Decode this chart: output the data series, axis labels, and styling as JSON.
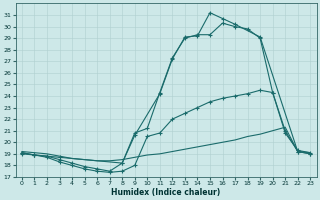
{
  "xlabel": "Humidex (Indice chaleur)",
  "xlim": [
    -0.5,
    23.5
  ],
  "ylim": [
    17,
    32
  ],
  "yticks": [
    17,
    18,
    19,
    20,
    21,
    22,
    23,
    24,
    25,
    26,
    27,
    28,
    29,
    30,
    31
  ],
  "xticks": [
    0,
    1,
    2,
    3,
    4,
    5,
    6,
    7,
    8,
    9,
    10,
    11,
    12,
    13,
    14,
    15,
    16,
    17,
    18,
    19,
    20,
    21,
    22,
    23
  ],
  "background_color": "#cde8e8",
  "grid_color": "#b0d0d0",
  "line_color": "#1a6b6b",
  "curve_top_x": [
    0,
    1,
    3,
    8,
    9,
    11,
    12,
    13,
    14,
    15,
    16,
    17,
    19,
    22,
    23
  ],
  "curve_top_y": [
    19.1,
    18.9,
    18.7,
    18.2,
    20.6,
    24.2,
    27.2,
    29.1,
    29.2,
    31.2,
    30.7,
    30.2,
    29.1,
    19.2,
    19.0
  ],
  "curve_mid_x": [
    0,
    1,
    2,
    3,
    4,
    5,
    6,
    7,
    8,
    9,
    10,
    11,
    12,
    13,
    14,
    15,
    16,
    17,
    18,
    19,
    20,
    21,
    22,
    23
  ],
  "curve_mid_y": [
    19.0,
    18.9,
    18.8,
    18.5,
    18.2,
    17.9,
    17.7,
    17.5,
    18.2,
    20.8,
    21.2,
    24.3,
    27.3,
    29.0,
    29.3,
    29.3,
    30.3,
    30.0,
    29.8,
    29.0,
    24.3,
    21.0,
    19.2,
    19.0
  ],
  "curve_low_x": [
    0,
    1,
    2,
    3,
    4,
    5,
    6,
    7,
    8,
    9,
    10,
    11,
    12,
    13,
    14,
    15,
    16,
    17,
    18,
    19,
    20,
    21,
    22,
    23
  ],
  "curve_low_y": [
    19.1,
    18.9,
    18.7,
    18.3,
    18.0,
    17.7,
    17.5,
    17.4,
    17.5,
    18.0,
    20.5,
    20.8,
    22.0,
    22.5,
    23.0,
    23.5,
    23.8,
    24.0,
    24.2,
    24.5,
    24.3,
    20.8,
    19.3,
    19.1
  ],
  "curve_base_x": [
    0,
    1,
    2,
    3,
    4,
    5,
    6,
    7,
    8,
    9,
    10,
    11,
    12,
    13,
    14,
    15,
    16,
    17,
    18,
    19,
    20,
    21,
    22,
    23
  ],
  "curve_base_y": [
    19.2,
    19.1,
    19.0,
    18.8,
    18.6,
    18.5,
    18.4,
    18.4,
    18.5,
    18.7,
    18.9,
    19.0,
    19.2,
    19.4,
    19.6,
    19.8,
    20.0,
    20.2,
    20.5,
    20.7,
    21.0,
    21.3,
    19.2,
    19.1
  ]
}
